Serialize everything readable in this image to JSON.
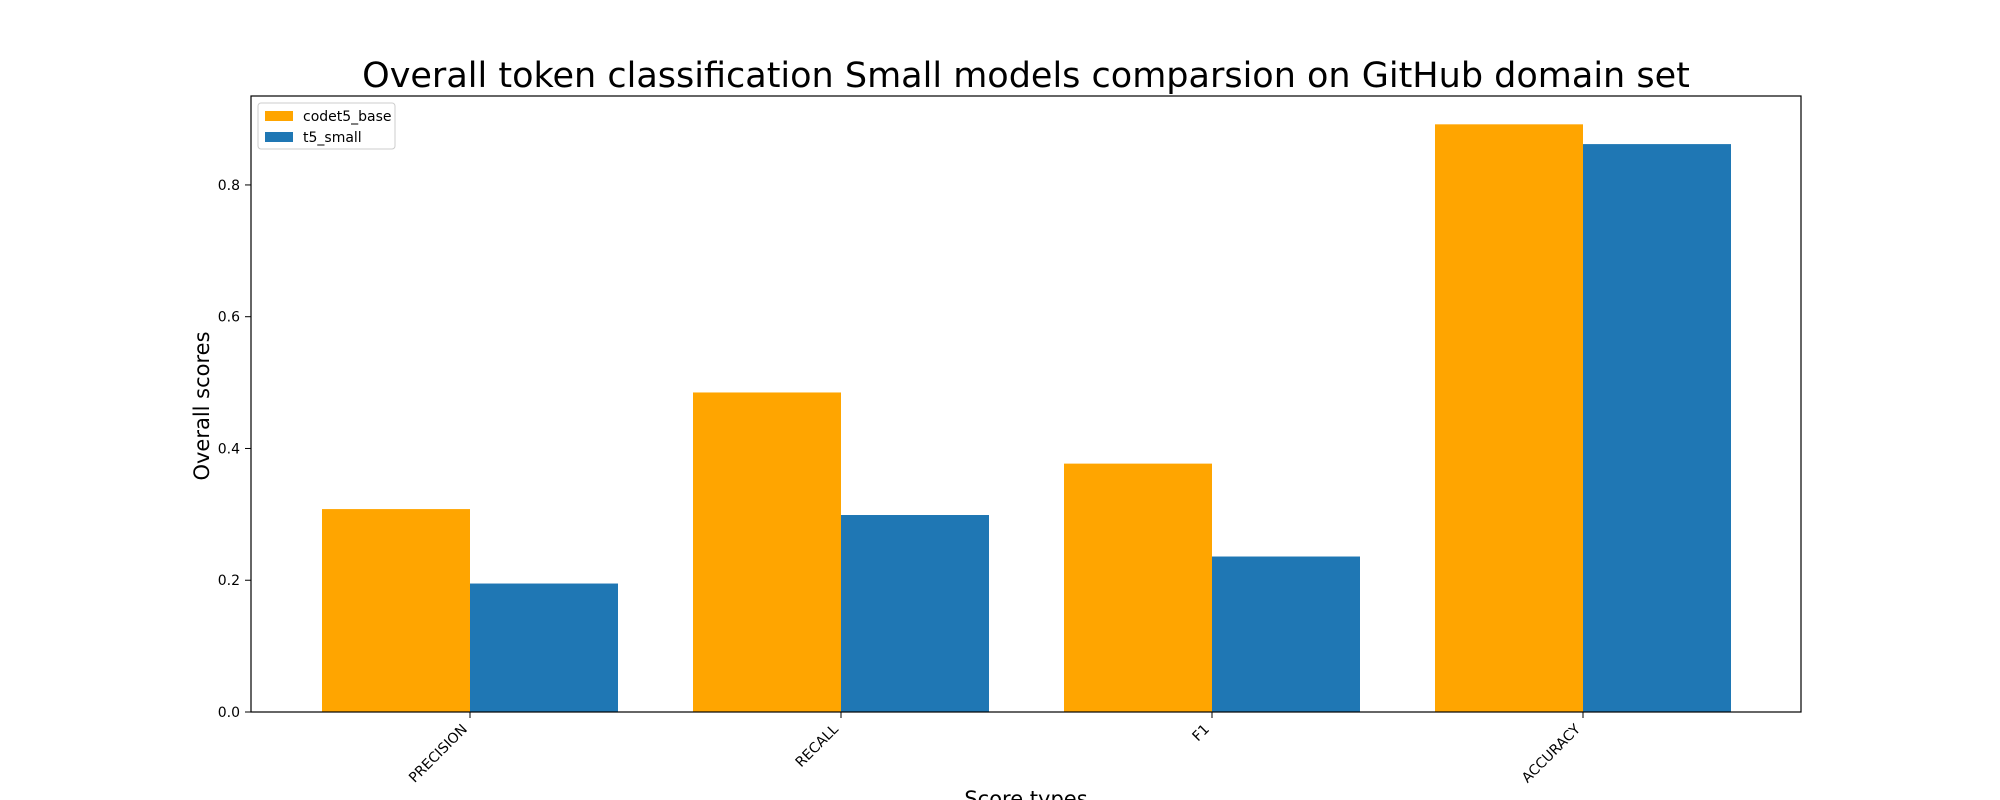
{
  "chart_data": {
    "type": "bar",
    "title": "Overall token classification Small models comparsion on GitHub domain set",
    "xlabel": "Score types",
    "ylabel": "Overall scores",
    "categories": [
      "PRECISION",
      "RECALL",
      "F1",
      "ACCURACY"
    ],
    "series": [
      {
        "name": "codet5_base",
        "color": "#FFA500",
        "values": [
          0.308,
          0.485,
          0.377,
          0.892
        ]
      },
      {
        "name": "t5_small",
        "color": "#1F77B4",
        "values": [
          0.195,
          0.299,
          0.236,
          0.862
        ]
      }
    ],
    "ylim": [
      0,
      0.935
    ],
    "yticks": [
      "0.0",
      "0.2",
      "0.4",
      "0.6",
      "0.8"
    ],
    "grid": false,
    "legend_position": "top-left"
  }
}
